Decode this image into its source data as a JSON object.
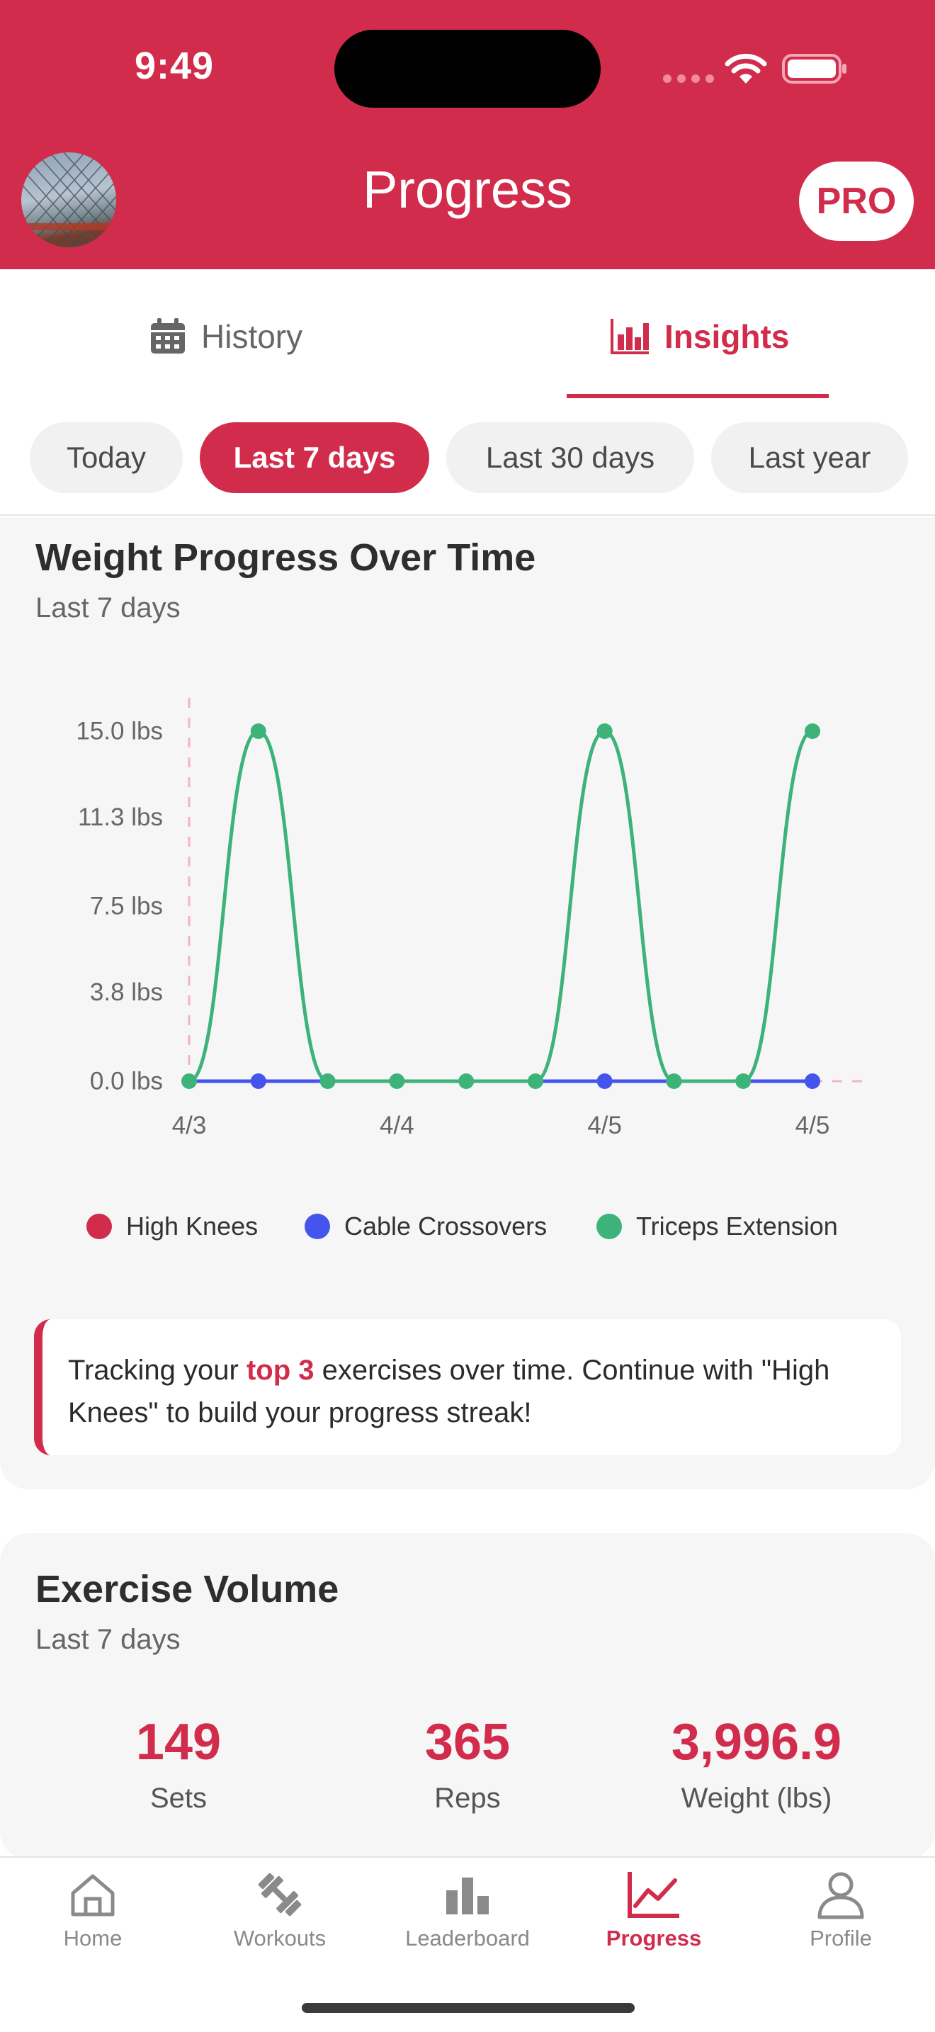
{
  "status_bar": {
    "time": "9:49"
  },
  "header": {
    "title": "Progress",
    "pro_label": "PRO"
  },
  "tabs": [
    {
      "label": "History",
      "icon": "calendar-icon"
    },
    {
      "label": "Insights",
      "icon": "bar-chart-icon",
      "active": true
    }
  ],
  "filters": [
    {
      "label": "Today"
    },
    {
      "label": "Last 7 days",
      "active": true
    },
    {
      "label": "Last 30 days"
    },
    {
      "label": "Last year"
    }
  ],
  "weight_card": {
    "title": "Weight Progress Over Time",
    "subtitle": "Last 7 days",
    "callout_prefix": "Tracking your ",
    "callout_highlight": "top 3",
    "callout_suffix": " exercises over time. Continue with \"High Knees\" to build your progress streak!"
  },
  "chart_data": {
    "type": "line",
    "title": "Weight Progress Over Time",
    "y_tick_labels": [
      "15.0 lbs",
      "11.3 lbs",
      "7.5 lbs",
      "3.8 lbs",
      "0.0 lbs"
    ],
    "x_tick_labels": [
      "4/3",
      "4/4",
      "4/5",
      "4/5"
    ],
    "ylim": [
      0,
      15
    ],
    "legend_position": "bottom",
    "series": [
      {
        "name": "High Knees",
        "color": "#d12c4b",
        "values": []
      },
      {
        "name": "Cable Crossovers",
        "color": "#4455ee",
        "values": [
          0,
          0,
          0,
          0,
          0,
          0,
          0,
          0,
          0,
          0
        ]
      },
      {
        "name": "Triceps Extension",
        "color": "#3db37a",
        "values": [
          0,
          15,
          0,
          0,
          0,
          0,
          15,
          0,
          0,
          15
        ]
      }
    ],
    "series_markers": {
      "Cable Crossovers": [
        1,
        6,
        9
      ],
      "Triceps Extension": [
        0,
        1,
        2,
        3,
        4,
        5,
        6,
        7,
        8,
        9
      ]
    }
  },
  "volume_card": {
    "title": "Exercise Volume",
    "subtitle": "Last 7 days",
    "stats": [
      {
        "value": "149",
        "label": "Sets"
      },
      {
        "value": "365",
        "label": "Reps"
      },
      {
        "value": "3,996.9",
        "label": "Weight (lbs)"
      }
    ]
  },
  "nav": [
    {
      "label": "Home",
      "icon": "home-icon"
    },
    {
      "label": "Workouts",
      "icon": "dumbbell-icon"
    },
    {
      "label": "Leaderboard",
      "icon": "leaderboard-icon"
    },
    {
      "label": "Progress",
      "icon": "trend-icon",
      "active": true
    },
    {
      "label": "Profile",
      "icon": "person-icon"
    }
  ],
  "colors": {
    "brand": "#d12c4b",
    "background": "#f6f6f6"
  }
}
